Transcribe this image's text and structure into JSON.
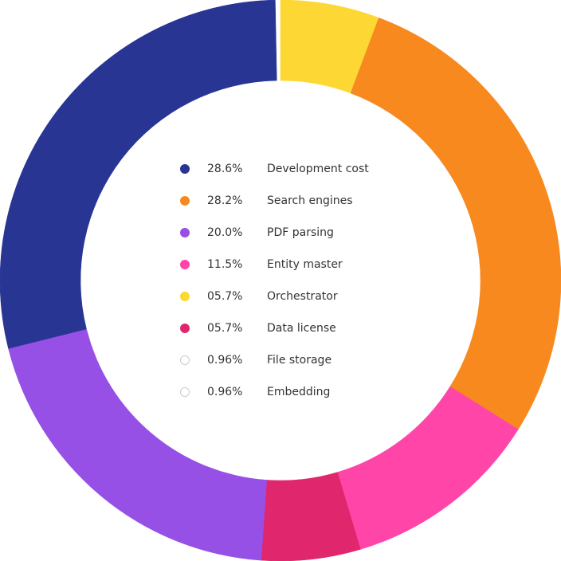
{
  "chart_data": {
    "type": "donut",
    "categories": [
      "Development cost",
      "Search engines",
      "PDF parsing",
      "Entity master",
      "Orchestrator",
      "Data license",
      "File storage",
      "Embedding"
    ],
    "values": [
      28.6,
      28.2,
      20.0,
      11.5,
      5.7,
      5.7,
      0.96,
      0.96
    ],
    "value_labels": [
      "28.6%",
      "28.2%",
      "20.0%",
      "11.5%",
      "05.7%",
      "05.7%",
      "0.96%",
      "0.96%"
    ],
    "colors": [
      "#283593",
      "#f7891f",
      "#9650e6",
      "#ff45a8",
      "#fdd835",
      "#e0276e",
      "#ffffff",
      "#ffffff"
    ]
  }
}
